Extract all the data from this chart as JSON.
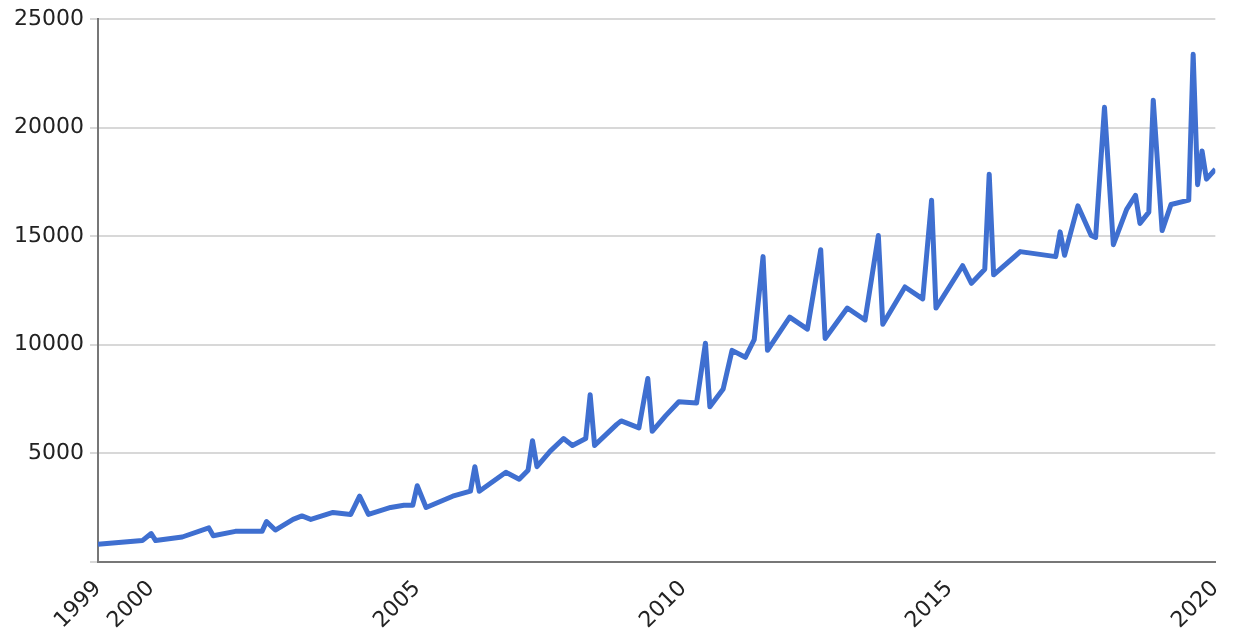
{
  "chart_data": {
    "type": "line",
    "x": [
      "1999-01",
      "1999-11",
      "2000-01",
      "2000-02",
      "2000-08",
      "2001-02",
      "2001-03",
      "2001-08",
      "2002-02",
      "2002-03",
      "2002-05",
      "2002-09",
      "2002-11",
      "2003-01",
      "2003-06",
      "2003-10",
      "2003-12",
      "2004-02",
      "2004-07",
      "2004-10",
      "2004-12",
      "2005-01",
      "2005-03",
      "2005-09",
      "2006-01",
      "2006-02",
      "2006-03",
      "2006-09",
      "2006-12",
      "2007-02",
      "2007-03",
      "2007-04",
      "2007-07",
      "2007-10",
      "2007-12",
      "2008-03",
      "2008-04",
      "2008-05",
      "2008-10",
      "2008-11",
      "2009-03",
      "2009-05",
      "2009-06",
      "2009-09",
      "2009-12",
      "2010-04",
      "2010-06",
      "2010-07",
      "2010-10",
      "2010-12",
      "2011-03",
      "2011-05",
      "2011-07",
      "2011-08",
      "2012-01",
      "2012-05",
      "2012-08",
      "2012-09",
      "2013-02",
      "2013-06",
      "2013-09",
      "2013-10",
      "2014-03",
      "2014-07",
      "2014-09",
      "2014-10",
      "2015-04",
      "2015-06",
      "2015-09",
      "2015-10",
      "2015-11",
      "2016-05",
      "2017-01",
      "2017-02",
      "2017-03",
      "2017-06",
      "2017-09",
      "2017-10",
      "2017-12",
      "2018-02",
      "2018-05",
      "2018-07",
      "2018-08",
      "2018-10",
      "2018-11",
      "2019-01",
      "2019-03",
      "2019-07",
      "2019-08",
      "2019-09",
      "2019-10",
      "2019-11",
      "2020-01"
    ],
    "series": [
      {
        "color": "#3f6fd0",
        "values": [
          810,
          975,
          1300,
          975,
          1140,
          1560,
          1200,
          1400,
          1400,
          1850,
          1460,
          1950,
          2110,
          1950,
          2270,
          2180,
          3020,
          2180,
          2500,
          2600,
          2600,
          3500,
          2500,
          3020,
          3250,
          4380,
          3250,
          4120,
          3800,
          4220,
          5580,
          4380,
          5100,
          5680,
          5360,
          5680,
          7700,
          5360,
          6330,
          6490,
          6170,
          8440,
          6010,
          6720,
          7370,
          7310,
          10070,
          7140,
          7960,
          9740,
          9420,
          10230,
          14060,
          9740,
          11270,
          10720,
          14380,
          10290,
          11690,
          11140,
          15030,
          10940,
          12660,
          12110,
          16660,
          11690,
          13640,
          12830,
          13480,
          17860,
          13220,
          14290,
          14060,
          15200,
          14120,
          16400,
          15030,
          14940,
          20940,
          14610,
          16240,
          16880,
          15590,
          16110,
          21270,
          15260,
          16460,
          16660,
          23380,
          17370,
          18930,
          17630,
          18090
        ]
      }
    ],
    "xlim": [
      "1999-01",
      "2020-01"
    ],
    "xticks": [
      "1999",
      "2000",
      "2005",
      "2010",
      "2015",
      "2020"
    ],
    "ylim": [
      0,
      25000
    ],
    "yticks": [
      {
        "value": 0,
        "label": null
      },
      5000,
      10000,
      15000,
      20000,
      25000
    ],
    "grid": "y",
    "legend": false,
    "marker": "none",
    "line_style": "solid"
  }
}
